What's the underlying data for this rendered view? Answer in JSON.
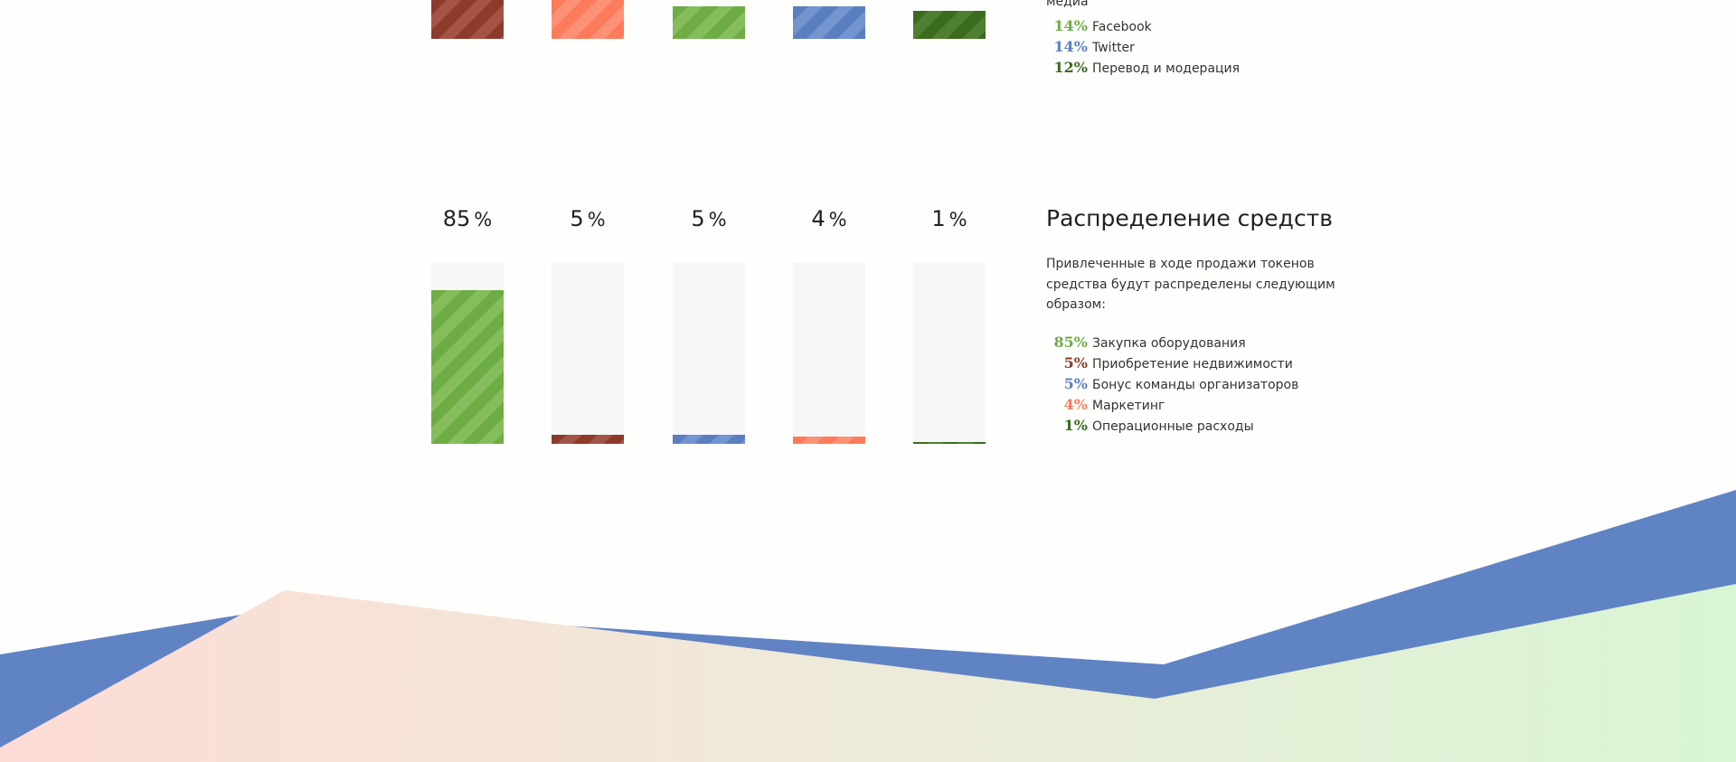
{
  "colors": {
    "dark_red": "#8c3a2a",
    "salmon": "#fc7b5b",
    "green": "#6eac44",
    "blue": "#5a7fc1",
    "dark_green": "#3b6b1e",
    "background": "#fefefd",
    "track": "#f7f7f7"
  },
  "top_section": {
    "caption": "медиа",
    "legend": [
      {
        "pct": "14%",
        "label": "Facebook",
        "color": "#6eac44"
      },
      {
        "pct": "14%",
        "label": "Twitter",
        "color": "#5a7fc1"
      },
      {
        "pct": "12%",
        "label": "Перевод и модерация",
        "color": "#3b6b1e"
      }
    ]
  },
  "funds_section": {
    "title": "Распределение средств",
    "description": "Привлеченные в ходе продажи токенов средства будут распределены следующим образом:",
    "legend": [
      {
        "pct": "85%",
        "label": "Закупка оборудования",
        "color": "#6eac44"
      },
      {
        "pct": "5%",
        "label": "Приобретение недвижимости",
        "color": "#8c3a2a"
      },
      {
        "pct": "5%",
        "label": "Бонус команды организаторов",
        "color": "#5a7fc1"
      },
      {
        "pct": "4%",
        "label": "Маркетинг",
        "color": "#fc7b5b"
      },
      {
        "pct": "1%",
        "label": "Операционные расходы",
        "color": "#3b6b1e"
      }
    ]
  },
  "chart_data": [
    {
      "type": "bar",
      "categories": [
        "",
        "",
        "",
        "",
        ""
      ],
      "values": [
        null,
        null,
        null,
        null,
        null
      ],
      "colors": [
        "#8c3a2a",
        "#fc7b5b",
        "#6eac44",
        "#5a7fc1",
        "#3b6b1e"
      ],
      "note_visible": "partially visible, cropped at top"
    },
    {
      "type": "bar",
      "categories": [
        "Закупка оборудования",
        "Приобретение недвижимости",
        "Бонус команды организаторов",
        "Маркетинг",
        "Операционные расходы"
      ],
      "values": [
        85,
        5,
        5,
        4,
        1
      ],
      "value_labels": [
        "85",
        "5",
        "5",
        "4",
        "1"
      ],
      "unit": "%",
      "colors": [
        "#6eac44",
        "#8c3a2a",
        "#5a7fc1",
        "#fc7b5b",
        "#3b6b1e"
      ],
      "ylim": [
        0,
        100
      ]
    }
  ]
}
